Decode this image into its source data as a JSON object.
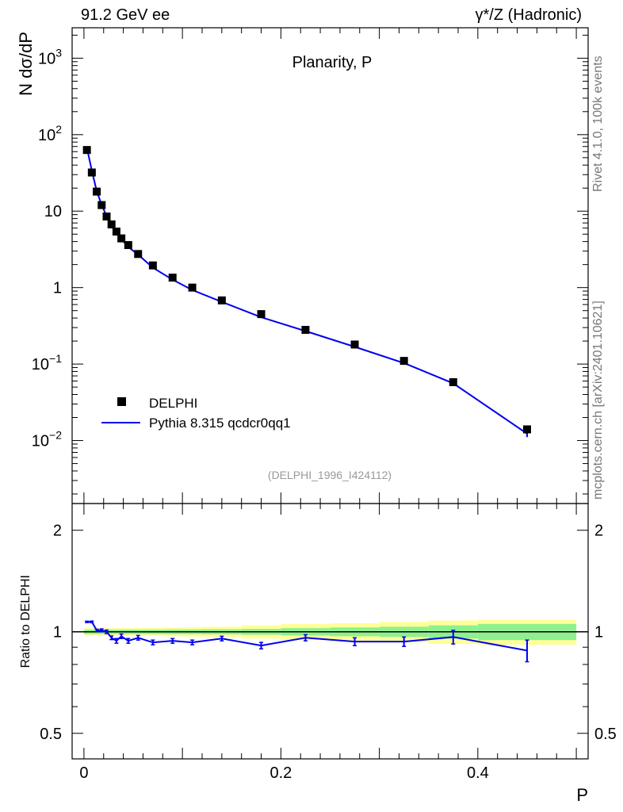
{
  "header": {
    "left": "91.2 GeV ee",
    "right": "γ*/Z (Hadronic)"
  },
  "side_labels": {
    "rivet": "Rivet 4.1.0,  100k events",
    "mcplots": "mcplots.cern.ch [arXiv:2401.10621]"
  },
  "colors": {
    "mc": "#0000ee",
    "data": "#000000",
    "band_inner": "#8ff08f",
    "band_outer": "#ffff99"
  },
  "chart_data": [
    {
      "type": "scatter",
      "title": "Planarity, P",
      "ylabel": "N  dσ/dP",
      "xlabel": "P",
      "yscale": "log",
      "ylim": [
        0.0015,
        2500
      ],
      "xlim": [
        -0.012,
        0.512
      ],
      "x_ticks": [
        0,
        0.2,
        0.4
      ],
      "y_ticks": [
        {
          "value": 0.01,
          "base": "10",
          "exp": "−2"
        },
        {
          "value": 0.1,
          "base": "10",
          "exp": "−1"
        },
        {
          "value": 1,
          "base": "1",
          "exp": ""
        },
        {
          "value": 10,
          "base": "10",
          "exp": ""
        },
        {
          "value": 100,
          "base": "10",
          "exp": "2"
        },
        {
          "value": 1000,
          "base": "10",
          "exp": "3"
        }
      ],
      "legend": {
        "position": "bottom-left",
        "data_label": "DELPHI",
        "mc_label": "Pythia 8.315 qcdcr0qq1"
      },
      "annotation": "(DELPHI_1996_I424112)",
      "x": [
        0.003,
        0.008,
        0.013,
        0.018,
        0.023,
        0.028,
        0.033,
        0.038,
        0.045,
        0.055,
        0.07,
        0.09,
        0.11,
        0.14,
        0.18,
        0.225,
        0.275,
        0.325,
        0.375,
        0.45
      ],
      "series": [
        {
          "name": "DELPHI",
          "kind": "data",
          "values": [
            63,
            32,
            18,
            12,
            8.5,
            6.7,
            5.4,
            4.4,
            3.6,
            2.75,
            1.95,
            1.35,
            1.0,
            0.68,
            0.45,
            0.28,
            0.18,
            0.11,
            0.058,
            0.014
          ]
        },
        {
          "name": "Pythia 8.315 qcdcr0qq1",
          "kind": "mc",
          "values": [
            67,
            34,
            18.2,
            12.1,
            8.6,
            6.4,
            5.1,
            4.3,
            3.4,
            2.7,
            1.82,
            1.27,
            0.93,
            0.65,
            0.41,
            0.27,
            0.168,
            0.103,
            0.056,
            0.0123
          ],
          "errors": [
            0,
            0,
            0,
            0,
            0,
            0,
            0,
            0,
            0,
            0,
            0,
            0,
            0,
            0,
            0,
            0,
            0,
            0,
            0.001,
            0.0012
          ]
        }
      ]
    },
    {
      "type": "line",
      "ylabel": "Ratio to DELPHI",
      "yscale": "log",
      "ylim": [
        0.42,
        2.4
      ],
      "y_ticks": [
        {
          "value": 0.5,
          "label": "0.5"
        },
        {
          "value": 1,
          "label": "1"
        },
        {
          "value": 2,
          "label": "2"
        }
      ],
      "band_edges": [
        0,
        0.005,
        0.01,
        0.015,
        0.02,
        0.025,
        0.03,
        0.035,
        0.04,
        0.05,
        0.06,
        0.08,
        0.1,
        0.12,
        0.16,
        0.2,
        0.25,
        0.3,
        0.35,
        0.4,
        0.5
      ],
      "band_inner": [
        0.015,
        0.015,
        0.015,
        0.015,
        0.015,
        0.015,
        0.015,
        0.015,
        0.015,
        0.015,
        0.015,
        0.016,
        0.016,
        0.017,
        0.02,
        0.025,
        0.03,
        0.035,
        0.045,
        0.055
      ],
      "band_outer": [
        0.025,
        0.025,
        0.025,
        0.025,
        0.025,
        0.025,
        0.025,
        0.025,
        0.025,
        0.026,
        0.027,
        0.03,
        0.032,
        0.035,
        0.045,
        0.055,
        0.06,
        0.07,
        0.08,
        0.085
      ],
      "series": [
        {
          "name": "Pythia 8.315 qcdcr0qq1 / DELPHI",
          "values": [
            1.07,
            1.07,
            1.01,
            1.01,
            1.0,
            0.96,
            0.94,
            0.97,
            0.94,
            0.96,
            0.93,
            0.94,
            0.93,
            0.955,
            0.91,
            0.96,
            0.935,
            0.935,
            0.965,
            0.88
          ],
          "errors": [
            0.005,
            0.006,
            0.008,
            0.01,
            0.012,
            0.012,
            0.015,
            0.015,
            0.015,
            0.015,
            0.015,
            0.015,
            0.015,
            0.015,
            0.02,
            0.02,
            0.025,
            0.03,
            0.045,
            0.065
          ]
        }
      ]
    }
  ]
}
